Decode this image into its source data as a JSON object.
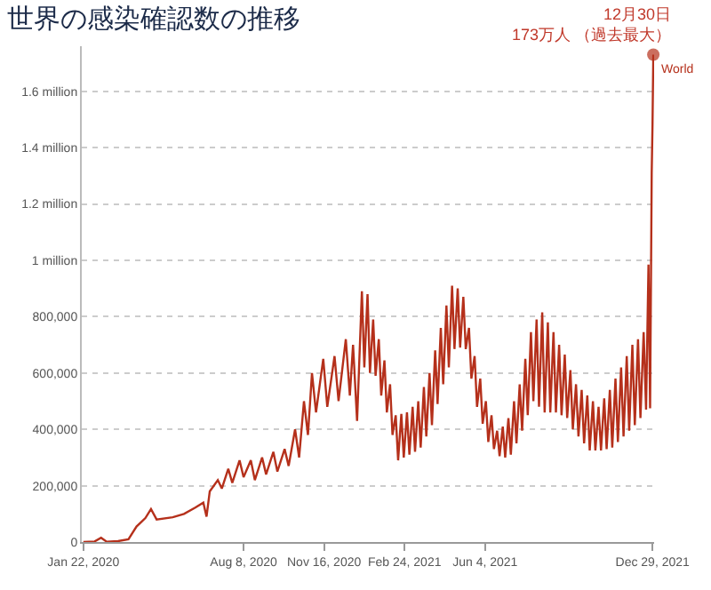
{
  "chart_data": {
    "type": "line",
    "title": "世界の感染確認数の推移",
    "x": [
      "2020-01-22",
      "2020-02-05",
      "2020-02-13",
      "2020-02-20",
      "2020-03-05",
      "2020-03-18",
      "2020-03-28",
      "2020-04-08",
      "2020-04-15",
      "2020-04-22",
      "2020-05-12",
      "2020-05-26",
      "2020-06-09",
      "2020-06-19",
      "2020-06-23",
      "2020-06-27",
      "2020-07-07",
      "2020-07-12",
      "2020-07-20",
      "2020-07-25",
      "2020-08-03",
      "2020-08-08",
      "2020-08-17",
      "2020-08-22",
      "2020-08-31",
      "2020-09-05",
      "2020-09-14",
      "2020-09-19",
      "2020-09-28",
      "2020-10-03",
      "2020-10-11",
      "2020-10-16",
      "2020-10-22",
      "2020-10-27",
      "2020-11-01",
      "2020-11-06",
      "2020-11-15",
      "2020-11-20",
      "2020-11-29",
      "2020-12-04",
      "2020-12-13",
      "2020-12-18",
      "2020-12-22",
      "2020-12-27",
      "2021-01-02",
      "2021-01-05",
      "2021-01-09",
      "2021-01-12",
      "2021-01-16",
      "2021-01-19",
      "2021-01-23",
      "2021-01-26",
      "2021-01-30",
      "2021-02-02",
      "2021-02-06",
      "2021-02-09",
      "2021-02-13",
      "2021-02-16",
      "2021-02-20",
      "2021-02-23",
      "2021-02-27",
      "2021-03-02",
      "2021-03-06",
      "2021-03-09",
      "2021-03-13",
      "2021-03-16",
      "2021-03-20",
      "2021-03-23",
      "2021-03-27",
      "2021-03-30",
      "2021-04-03",
      "2021-04-06",
      "2021-04-10",
      "2021-04-13",
      "2021-04-17",
      "2021-04-20",
      "2021-04-24",
      "2021-04-27",
      "2021-05-01",
      "2021-05-04",
      "2021-05-08",
      "2021-05-11",
      "2021-05-15",
      "2021-05-18",
      "2021-05-22",
      "2021-05-25",
      "2021-05-29",
      "2021-06-01",
      "2021-06-05",
      "2021-06-08",
      "2021-06-12",
      "2021-06-15",
      "2021-06-19",
      "2021-06-22",
      "2021-06-26",
      "2021-06-29",
      "2021-07-03",
      "2021-07-06",
      "2021-07-10",
      "2021-07-13",
      "2021-07-17",
      "2021-07-20",
      "2021-07-24",
      "2021-07-27",
      "2021-07-31",
      "2021-08-03",
      "2021-08-07",
      "2021-08-10",
      "2021-08-14",
      "2021-08-17",
      "2021-08-21",
      "2021-08-24",
      "2021-08-28",
      "2021-08-31",
      "2021-09-04",
      "2021-09-07",
      "2021-09-11",
      "2021-09-14",
      "2021-09-18",
      "2021-09-21",
      "2021-09-25",
      "2021-09-28",
      "2021-10-02",
      "2021-10-05",
      "2021-10-09",
      "2021-10-12",
      "2021-10-16",
      "2021-10-19",
      "2021-10-23",
      "2021-10-26",
      "2021-10-30",
      "2021-11-02",
      "2021-11-06",
      "2021-11-09",
      "2021-11-13",
      "2021-11-16",
      "2021-11-20",
      "2021-11-23",
      "2021-11-27",
      "2021-11-30",
      "2021-12-04",
      "2021-12-07",
      "2021-12-11",
      "2021-12-14",
      "2021-12-18",
      "2021-12-21",
      "2021-12-24",
      "2021-12-26",
      "2021-12-28",
      "2021-12-29",
      "2021-12-30"
    ],
    "series": [
      {
        "name": "World",
        "color": "#b5301b",
        "values": [
          0,
          2000,
          15000,
          1000,
          3000,
          10000,
          55000,
          85000,
          117000,
          80000,
          88000,
          100000,
          122000,
          140000,
          90000,
          180000,
          220000,
          190000,
          260000,
          210000,
          290000,
          230000,
          290000,
          220000,
          300000,
          240000,
          320000,
          250000,
          330000,
          270000,
          400000,
          300000,
          500000,
          380000,
          600000,
          460000,
          650000,
          480000,
          660000,
          500000,
          720000,
          520000,
          700000,
          430000,
          890000,
          620000,
          880000,
          600000,
          790000,
          590000,
          720000,
          520000,
          645000,
          460000,
          560000,
          380000,
          450000,
          290000,
          455000,
          300000,
          460000,
          310000,
          480000,
          320000,
          500000,
          335000,
          550000,
          375000,
          600000,
          415000,
          680000,
          490000,
          760000,
          560000,
          840000,
          620000,
          910000,
          685000,
          900000,
          690000,
          870000,
          685000,
          760000,
          580000,
          660000,
          480000,
          580000,
          420000,
          500000,
          355000,
          450000,
          330000,
          395000,
          305000,
          410000,
          300000,
          440000,
          310000,
          500000,
          350000,
          560000,
          395000,
          650000,
          450000,
          745000,
          500000,
          790000,
          480000,
          815000,
          460000,
          780000,
          460000,
          745000,
          460000,
          700000,
          450000,
          665000,
          440000,
          610000,
          400000,
          560000,
          375000,
          540000,
          350000,
          520000,
          325000,
          500000,
          325000,
          480000,
          325000,
          510000,
          330000,
          540000,
          335000,
          580000,
          355000,
          620000,
          375000,
          660000,
          395000,
          700000,
          415000,
          720000,
          440000,
          745000,
          470000,
          985000,
          475000,
          1310000,
          1480000,
          1730000
        ]
      }
    ],
    "annotations": [
      {
        "text": "12月30日\n173万人 （過去最大）",
        "x": "2021-12-30",
        "y": 1730000
      }
    ],
    "xlim": [
      "2020-01-20",
      "2021-12-31"
    ],
    "xticks": [
      {
        "value": "2020-01-22",
        "label": "Jan 22, 2020"
      },
      {
        "value": "2020-08-08",
        "label": "Aug 8, 2020"
      },
      {
        "value": "2020-11-16",
        "label": "Nov 16, 2020"
      },
      {
        "value": "2021-02-24",
        "label": "Feb 24, 2021"
      },
      {
        "value": "2021-06-04",
        "label": "Jun 4, 2021"
      },
      {
        "value": "2021-12-29",
        "label": "Dec 29, 2021"
      }
    ],
    "ylim": [
      0,
      1760000
    ],
    "yticks": [
      0,
      {
        "value": 200000,
        "label": "200,000"
      },
      {
        "value": 400000,
        "label": "400,000"
      },
      {
        "value": 600000,
        "label": "600,000"
      },
      {
        "value": 800000,
        "label": "800,000"
      },
      {
        "value": 1000000,
        "label": "1 million"
      },
      {
        "value": 1200000,
        "label": "1.2 million"
      },
      {
        "value": 1400000,
        "label": "1.4 million"
      },
      {
        "value": 1600000,
        "label": "1.6 million"
      }
    ],
    "grid": "y",
    "legend": false
  }
}
